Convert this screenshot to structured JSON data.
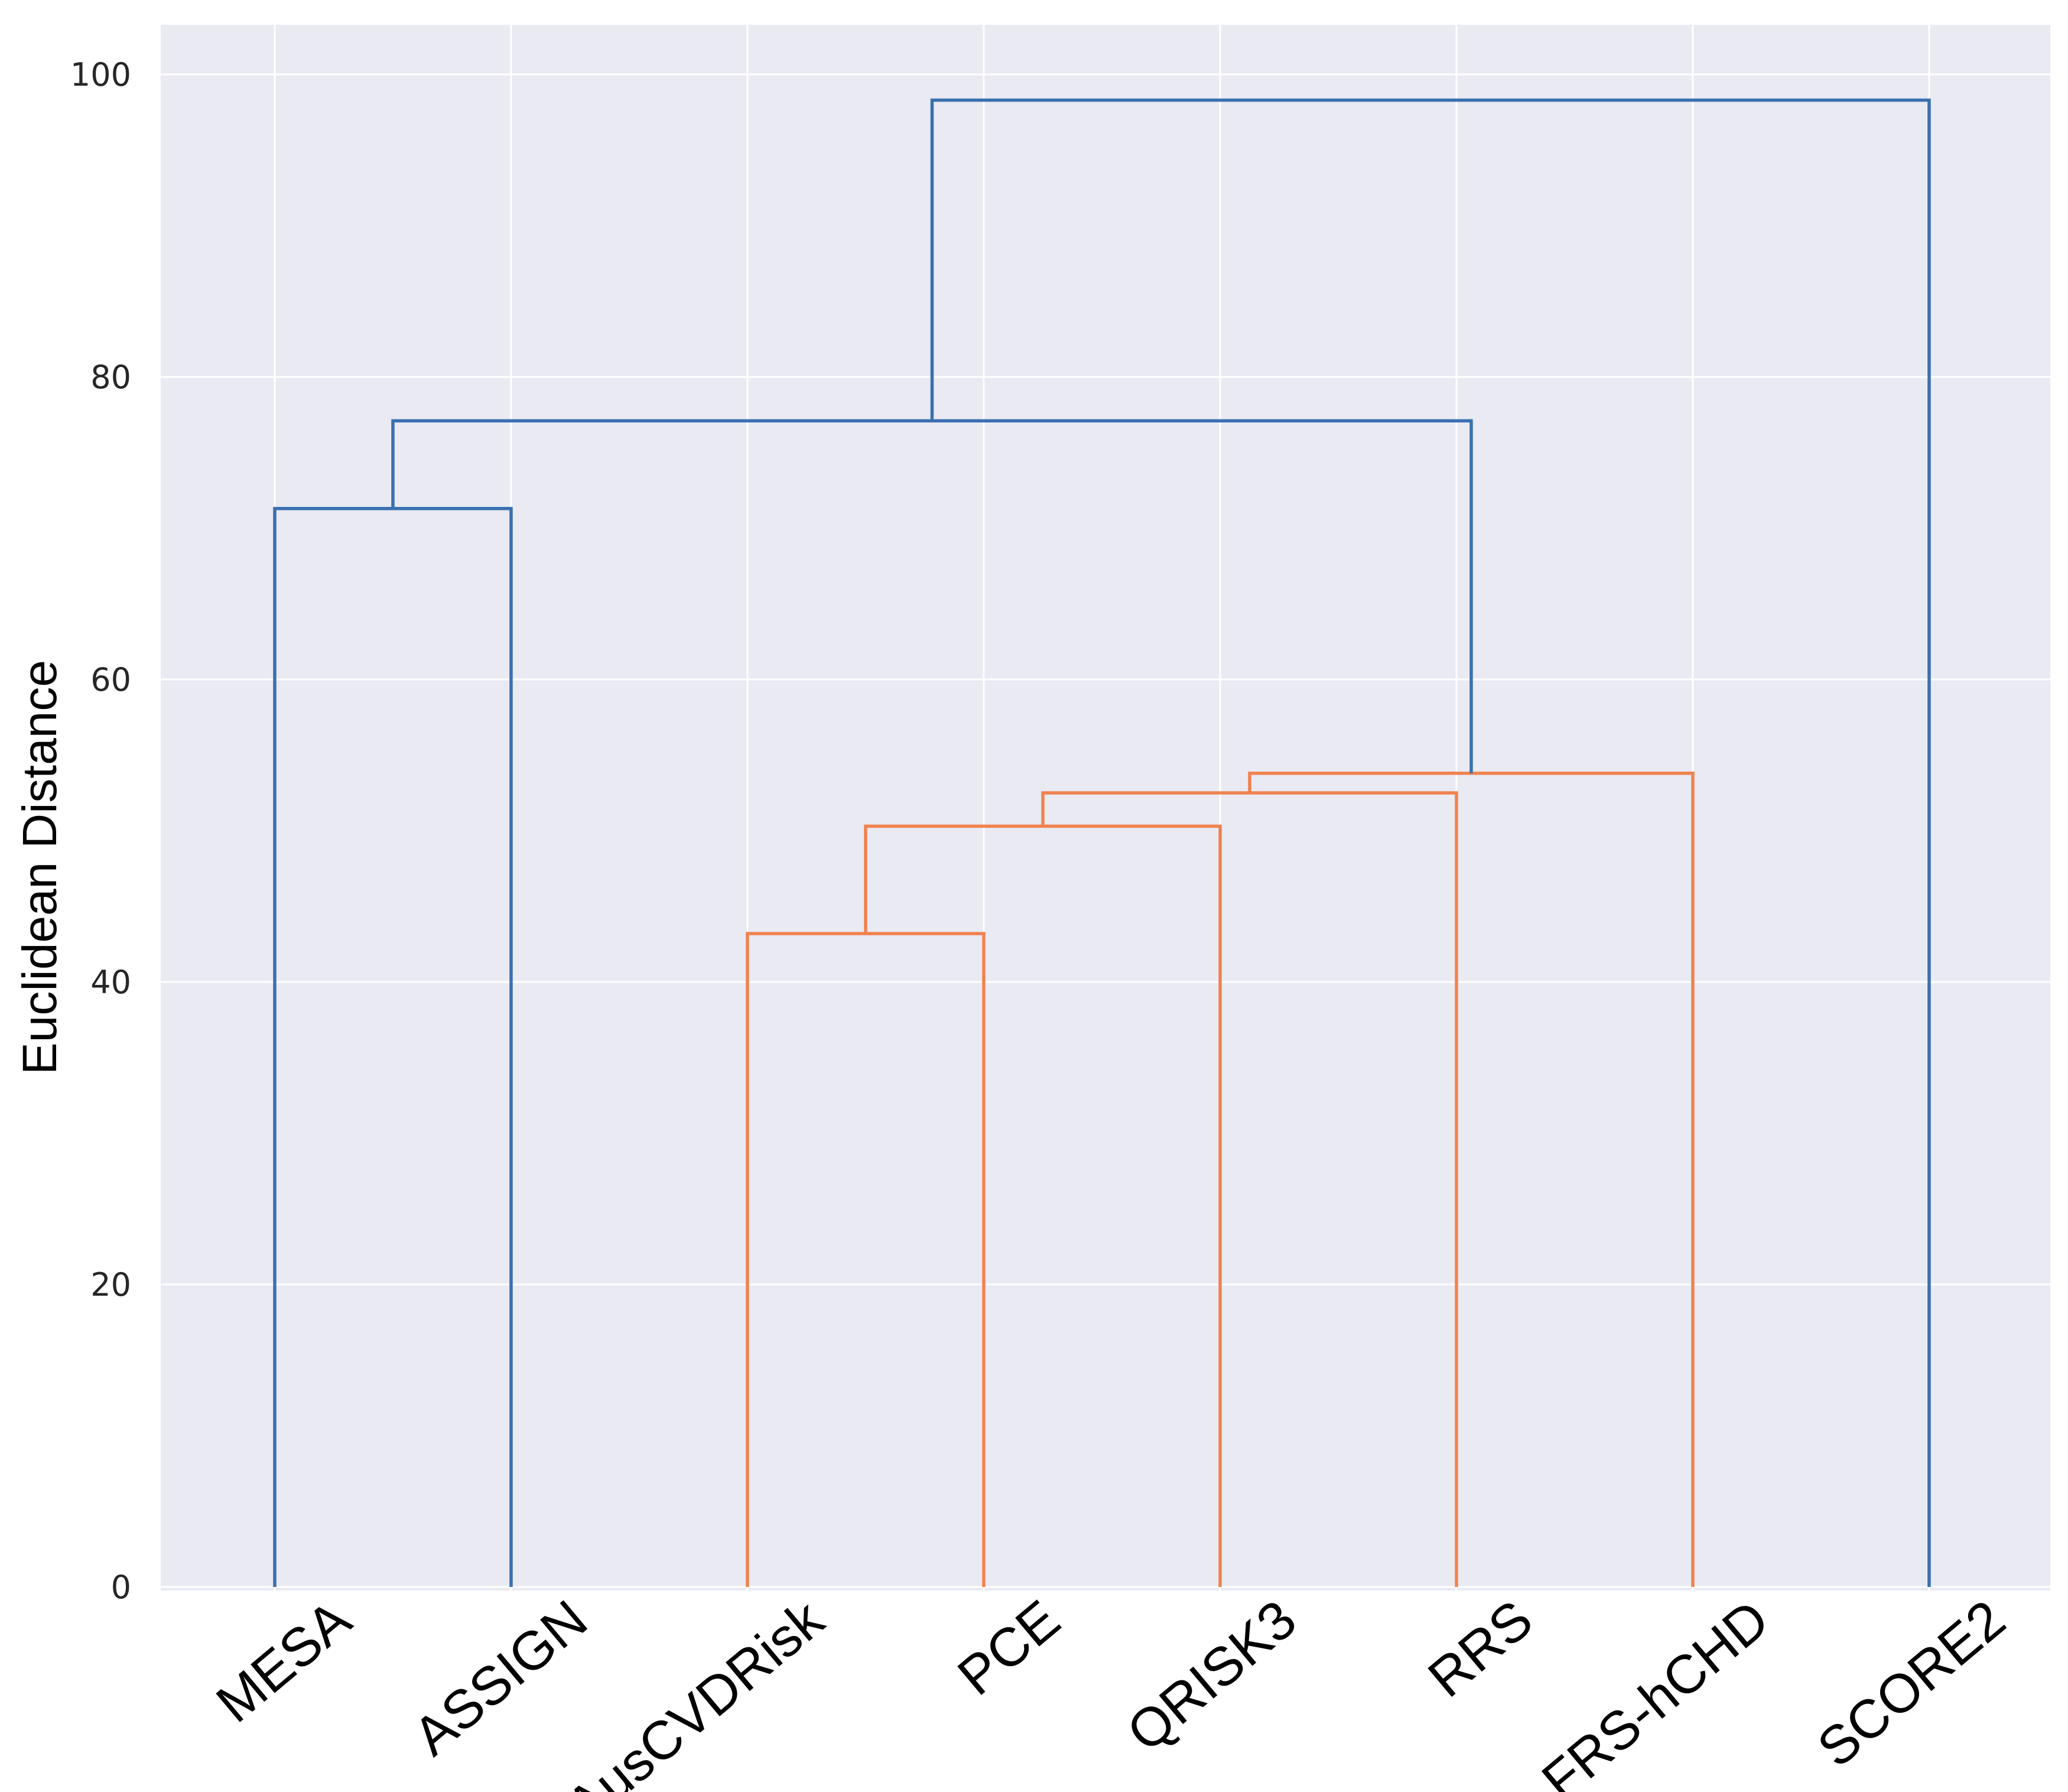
{
  "chart_data": {
    "type": "dendrogram",
    "title": "",
    "xlabel": "",
    "ylabel": "Euclidean Distance",
    "ylim": [
      0,
      103
    ],
    "yticks": [
      0,
      20,
      40,
      60,
      80,
      100
    ],
    "grid": true,
    "leaves": [
      "MESA",
      "ASSIGN",
      "AusCVDRisk",
      "PCE",
      "QRISK3",
      "RRS",
      "FRS-hCHD",
      "SCORE2"
    ],
    "merges": [
      {
        "left": "AusCVDRisk",
        "right": "PCE",
        "height": 43.2,
        "color": "#ef8350"
      },
      {
        "left": [
          "AusCVDRisk",
          "PCE"
        ],
        "right": "QRISK3",
        "height": 50.3,
        "color": "#ef8350"
      },
      {
        "left": [
          "AusCVDRisk",
          "PCE",
          "QRISK3"
        ],
        "right": "RRS",
        "height": 52.5,
        "color": "#ef8350"
      },
      {
        "left": [
          "AusCVDRisk",
          "PCE",
          "QRISK3",
          "RRS"
        ],
        "right": "FRS-hCHD",
        "height": 53.8,
        "color": "#ef8350"
      },
      {
        "left": "MESA",
        "right": "ASSIGN",
        "height": 71.3,
        "color": "#3a70b0"
      },
      {
        "left": [
          "MESA",
          "ASSIGN"
        ],
        "right": [
          "AusCVDRisk",
          "PCE",
          "QRISK3",
          "RRS",
          "FRS-hCHD"
        ],
        "height": 77.1,
        "color": "#3a70b0"
      },
      {
        "left": [
          "MESA",
          "ASSIGN",
          "AusCVDRisk",
          "PCE",
          "QRISK3",
          "RRS",
          "FRS-hCHD"
        ],
        "right": "SCORE2",
        "height": 98.3,
        "color": "#3a70b0"
      }
    ],
    "colors": {
      "background": "#e9eaf2",
      "grid": "#ffffff",
      "cluster_link": "#ef8350",
      "above_threshold_link": "#3a70b0"
    }
  }
}
